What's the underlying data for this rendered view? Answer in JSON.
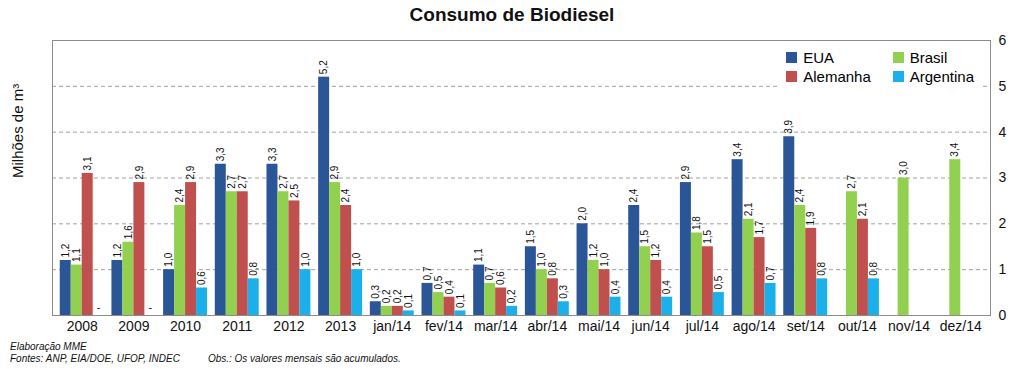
{
  "chart_data": {
    "type": "bar",
    "title": "Consumo de Biodiesel",
    "y_label": "Milhões de m³",
    "notes": [
      "Elaboração  MME",
      "Fontes: ANP, EIA/DOE, UFOP, INDEC",
      "Obs.: Os valores mensais são acumulados."
    ],
    "categories": [
      "2008",
      "2009",
      "2010",
      "2011",
      "2012",
      "2013",
      "jan/14",
      "fev/14",
      "mar/14",
      "abr/14",
      "mai/14",
      "jun/14",
      "jul/14",
      "ago/14",
      "set/14",
      "out/14",
      "nov/14",
      "dez/14"
    ],
    "series": [
      {
        "name": "EUA",
        "color": "#2a5597",
        "values": [
          1.2,
          1.2,
          1.0,
          3.3,
          3.3,
          5.2,
          0.3,
          0.7,
          1.1,
          1.5,
          2.0,
          2.4,
          2.9,
          3.4,
          3.9,
          null,
          null,
          null
        ],
        "value_labels": [
          "1,2",
          "1,2",
          "1,0",
          "3,3",
          "3,3",
          "5,2",
          "0,3",
          "0,7",
          "1,1",
          "1,5",
          "2,0",
          "2,4",
          "2,9",
          "3,4",
          "3,9",
          null,
          null,
          null
        ]
      },
      {
        "name": "Brasil",
        "color": "#92d050",
        "values": [
          1.1,
          1.6,
          2.4,
          2.7,
          2.7,
          2.9,
          0.2,
          0.5,
          0.7,
          1.0,
          1.2,
          1.5,
          1.8,
          2.1,
          2.4,
          2.7,
          3.0,
          3.4
        ],
        "value_labels": [
          "1,1",
          "1,6",
          "2,4",
          "2,7",
          "2,7",
          "2,9",
          "0,2",
          "0,5",
          "0,7",
          "1,0",
          "1,2",
          "1,5",
          "1,8",
          "2,1",
          "2,4",
          "2,7",
          "3,0",
          "3,4"
        ]
      },
      {
        "name": "Alemanha",
        "color": "#c0504d",
        "values": [
          3.1,
          2.9,
          2.9,
          2.7,
          2.5,
          2.4,
          0.2,
          0.4,
          0.6,
          0.8,
          1.0,
          1.2,
          1.5,
          1.7,
          1.9,
          2.1,
          null,
          null
        ],
        "value_labels": [
          "3,1",
          "2,9",
          "2,9",
          "2,7",
          "2,5",
          "2,4",
          "0,2",
          "0,4",
          "0,6",
          "0,8",
          "1,0",
          "1,2",
          "1,5",
          "1,7",
          "1,9",
          "2,1",
          null,
          null
        ]
      },
      {
        "name": "Argentina",
        "color": "#1cb0ea",
        "values": [
          null,
          null,
          0.6,
          0.8,
          1.0,
          1.0,
          0.1,
          0.1,
          0.2,
          0.3,
          0.4,
          0.4,
          0.5,
          0.7,
          0.8,
          0.8,
          null,
          null
        ],
        "value_labels": [
          "-",
          "-",
          "0,6",
          "0,8",
          "1,0",
          "1,0",
          "0,1",
          "0,1",
          "0,2",
          "0,3",
          "0,4",
          "0,4",
          "0,5",
          "0,7",
          "0,8",
          "0,8",
          null,
          null
        ]
      }
    ],
    "ylim": [
      0,
      6
    ],
    "yticks": [
      0,
      1,
      2,
      3,
      4,
      5,
      6
    ],
    "grid": true,
    "legend": "top-right",
    "data_labels": true
  }
}
